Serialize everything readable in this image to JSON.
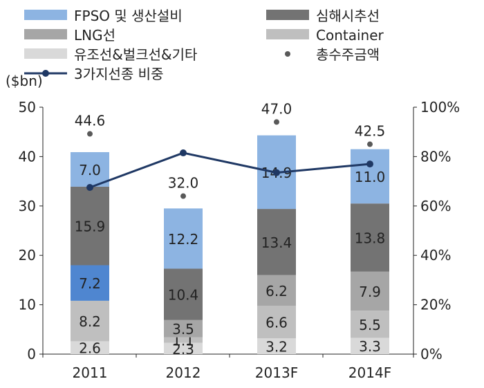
{
  "chart_data": {
    "type": "bar",
    "stacked": true,
    "categories": [
      "2011",
      "2012",
      "2013F",
      "2014F"
    ],
    "yaxis_left": {
      "unit": "($bn)",
      "range": [
        0,
        50
      ],
      "ticks": [
        "0",
        "10",
        "20",
        "30",
        "40",
        "50"
      ]
    },
    "yaxis_right": {
      "range": [
        0,
        100
      ],
      "ticks": [
        "0%",
        "20%",
        "40%",
        "60%",
        "80%",
        "100%"
      ]
    },
    "series": [
      {
        "name": "유조선&벌크선&기타",
        "color": "#d9d9d9",
        "values": [
          2.6,
          2.3,
          3.2,
          3.3
        ],
        "labels": [
          "2.6",
          "2.3",
          "3.2",
          "3.3"
        ]
      },
      {
        "name": "Container",
        "color": "#bfbfbf",
        "values": [
          8.2,
          1.1,
          6.6,
          5.5
        ],
        "labels": [
          "8.2",
          "1.1",
          "6.6",
          "5.5"
        ]
      },
      {
        "name": "LNG선",
        "color": "#a6a6a6",
        "values": [
          0,
          3.5,
          6.2,
          7.9
        ],
        "labels": [
          "",
          "3.5",
          "6.2",
          "7.9"
        ]
      },
      {
        "name": "심해시추선",
        "color": "#737373",
        "values": [
          7.2,
          10.4,
          13.4,
          13.8
        ],
        "labels": [
          "7.2",
          "10.4",
          "13.4",
          "13.8"
        ]
      },
      {
        "name": "FPSO 및 생산설비",
        "color": "#8db4e2",
        "values": [
          15.9,
          12.2,
          14.9,
          11.0
        ],
        "labels": [
          "15.9",
          "12.2",
          "14.9",
          "11.0"
        ]
      }
    ],
    "overrides": [
      {
        "category_index": 0,
        "series_index": 3,
        "color": "#4f86d0"
      },
      {
        "category_index": 0,
        "series_index": 4,
        "color": "#737373"
      }
    ],
    "top_segment": {
      "category_index": 0,
      "value": 7.0,
      "label": "7.0",
      "color": "#8db4e2"
    },
    "total": {
      "name": "총수주금액",
      "values": [
        44.6,
        32.0,
        47.0,
        42.5
      ],
      "labels": [
        "44.6",
        "32.0",
        "47.0",
        "42.5"
      ],
      "color": "#595959"
    },
    "line": {
      "name": "3가지선종 비중",
      "axis": "right",
      "values": [
        67.5,
        81.5,
        73.5,
        77.0
      ],
      "color": "#1f3864"
    },
    "legend": {
      "placement": "top",
      "entries": [
        {
          "label": "FPSO 및 생산설비",
          "color": "#8db4e2",
          "kind": "box"
        },
        {
          "label": "심해시추선",
          "color": "#737373",
          "kind": "box"
        },
        {
          "label": "LNG선",
          "color": "#a6a6a6",
          "kind": "box"
        },
        {
          "label": "Container",
          "color": "#bfbfbf",
          "kind": "box"
        },
        {
          "label": "유조선&벌크선&기타",
          "color": "#d9d9d9",
          "kind": "box"
        },
        {
          "label": "총수주금액",
          "color": "#595959",
          "kind": "dot"
        },
        {
          "label": "3가지선종 비중",
          "color": "#1f3864",
          "kind": "line"
        }
      ]
    },
    "grid": false
  }
}
